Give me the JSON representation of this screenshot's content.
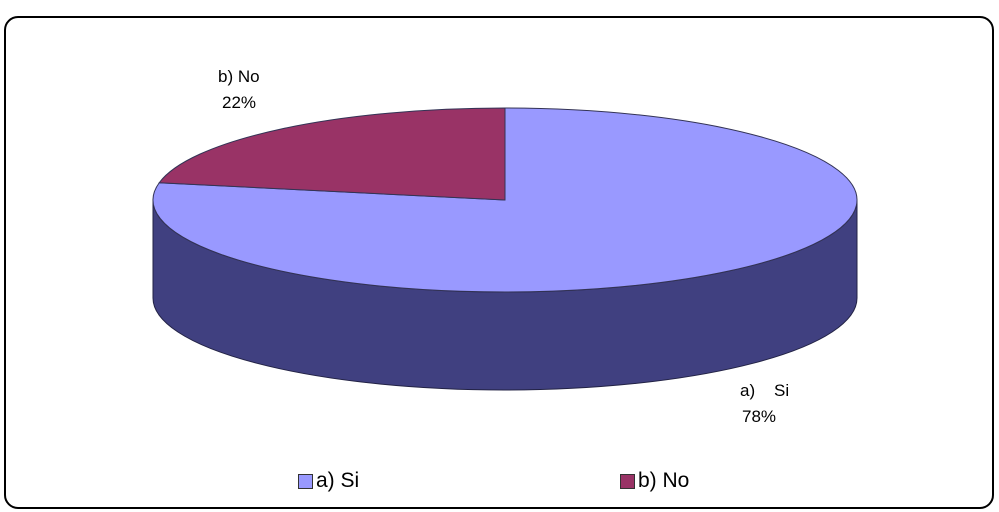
{
  "chart_data": {
    "type": "pie",
    "style": "3d",
    "categories": [
      "a) Si",
      "b) No"
    ],
    "values": [
      78,
      22
    ],
    "unit": "%",
    "colors": {
      "a) Si": {
        "top": "#9999ff",
        "side": "#404080"
      },
      "b) No": {
        "top": "#993366",
        "side": "#4d1a33"
      }
    },
    "data_labels": [
      {
        "category": "a) Si",
        "line1": "a)    Si",
        "line2": "78%"
      },
      {
        "category": "b) No",
        "line1": "b) No",
        "line2": "22%"
      }
    ],
    "legend": {
      "placement": "bottom",
      "items": [
        {
          "label": "a) Si",
          "color": "#9999ff"
        },
        {
          "label": "b) No",
          "color": "#993366"
        }
      ]
    }
  }
}
